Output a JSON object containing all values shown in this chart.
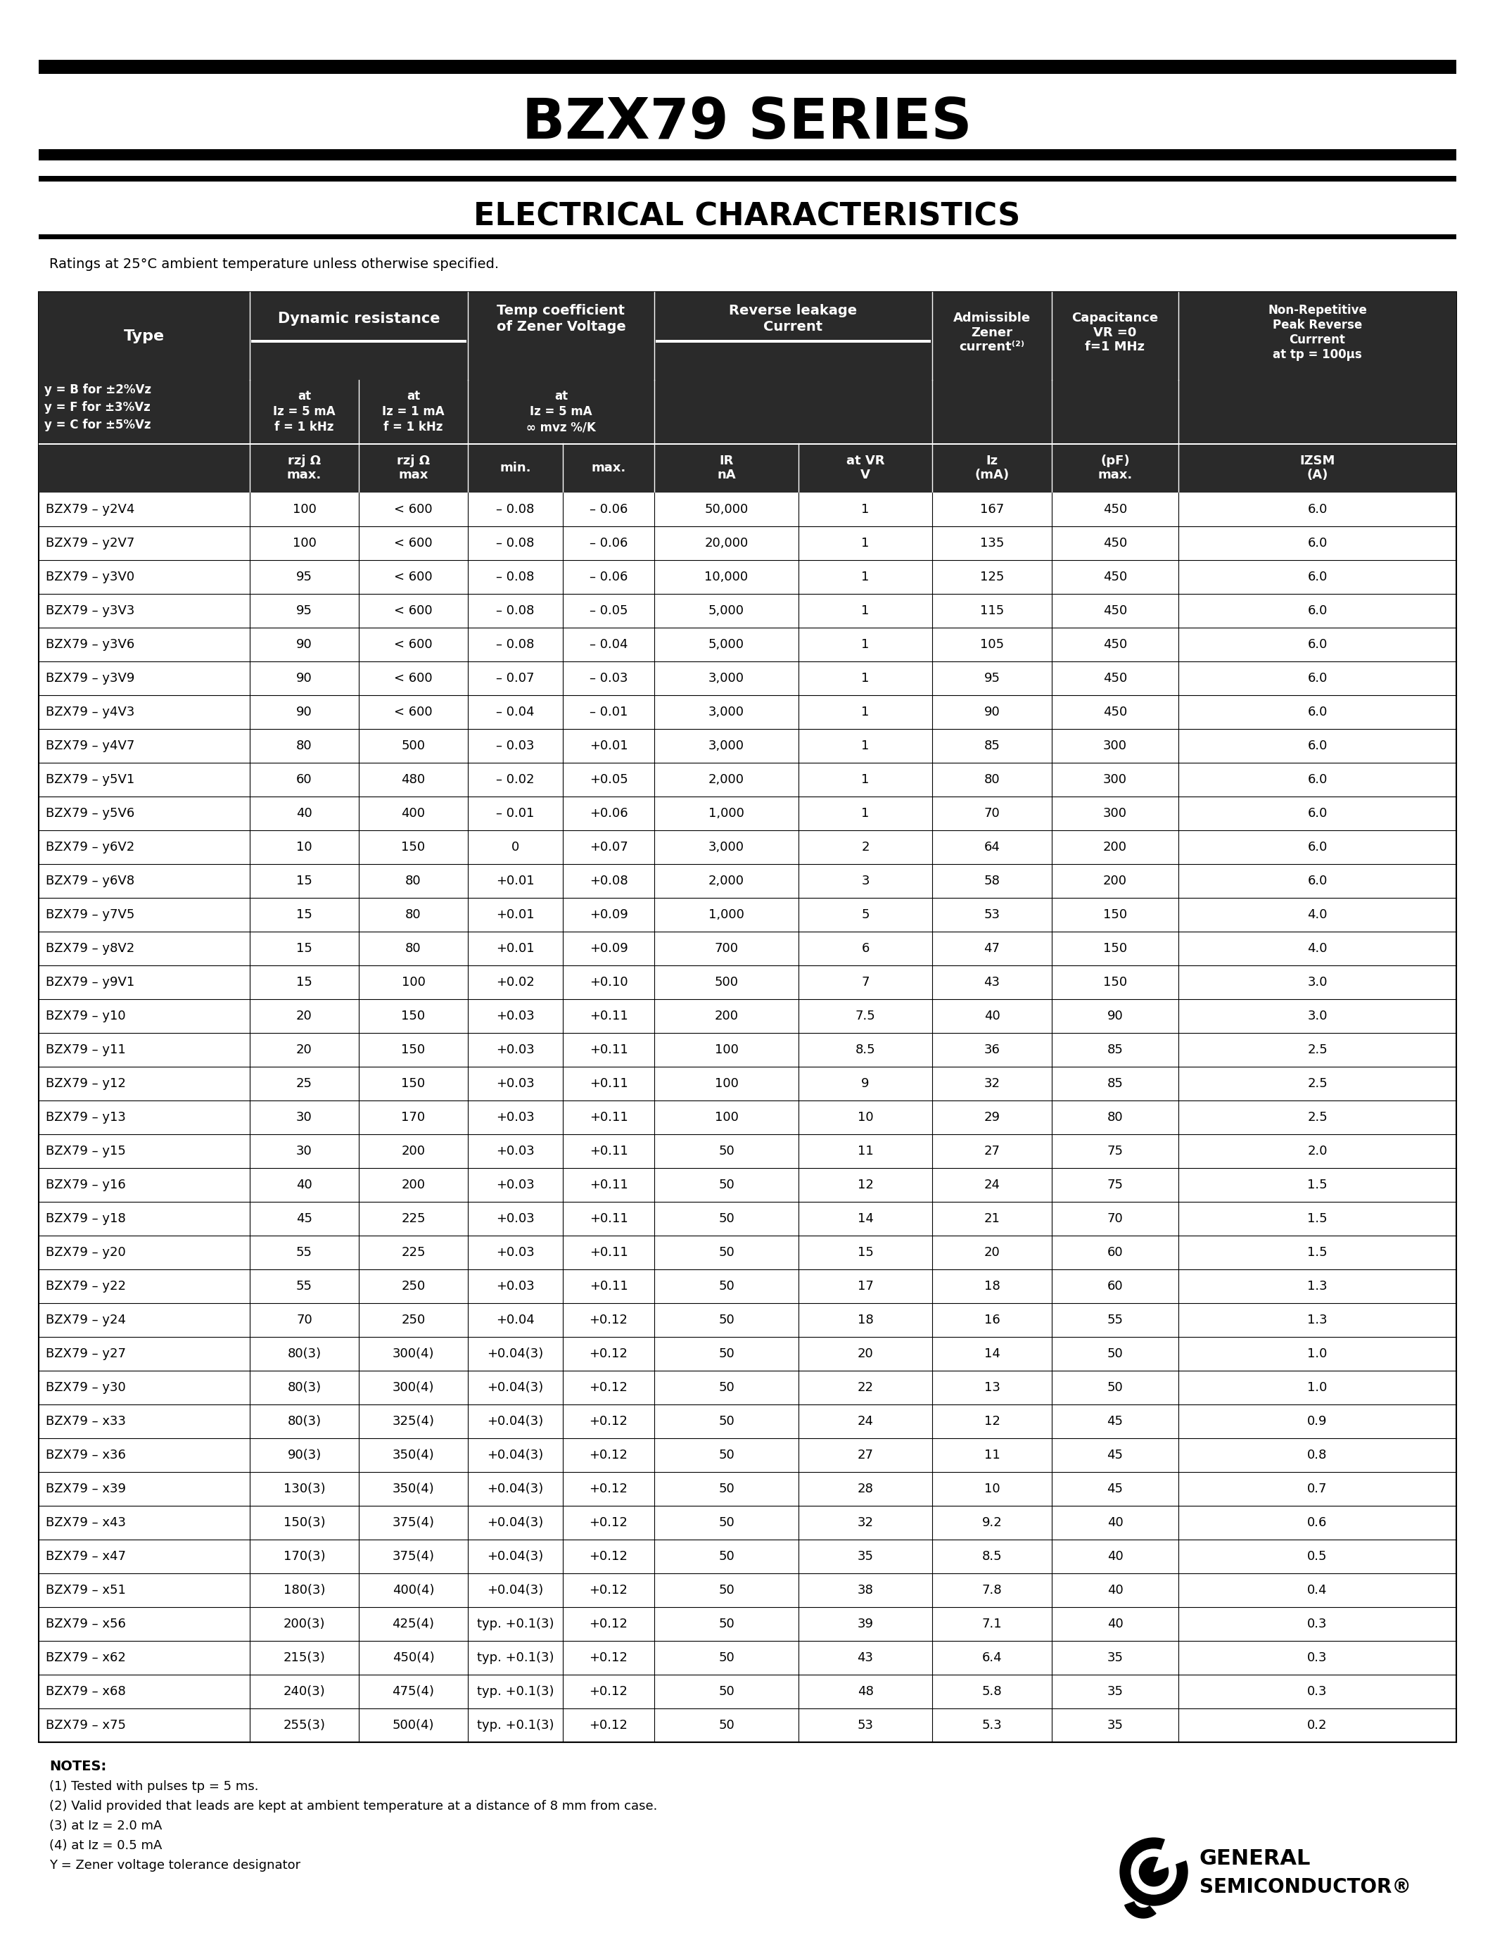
{
  "title": "BZX79 SERIES",
  "subtitle": "ELECTRICAL CHARACTERISTICS",
  "rating_note": "Ratings at 25°C ambient temperature unless otherwise specified.",
  "table_data": [
    [
      "BZX79 – y2V4",
      "100",
      "< 600",
      "– 0.08",
      "– 0.06",
      "50,000",
      "1",
      "167",
      "450",
      "6.0"
    ],
    [
      "BZX79 – y2V7",
      "100",
      "< 600",
      "– 0.08",
      "– 0.06",
      "20,000",
      "1",
      "135",
      "450",
      "6.0"
    ],
    [
      "BZX79 – y3V0",
      "95",
      "< 600",
      "– 0.08",
      "– 0.06",
      "10,000",
      "1",
      "125",
      "450",
      "6.0"
    ],
    [
      "BZX79 – y3V3",
      "95",
      "< 600",
      "– 0.08",
      "– 0.05",
      "5,000",
      "1",
      "115",
      "450",
      "6.0"
    ],
    [
      "BZX79 – y3V6",
      "90",
      "< 600",
      "– 0.08",
      "– 0.04",
      "5,000",
      "1",
      "105",
      "450",
      "6.0"
    ],
    [
      "BZX79 – y3V9",
      "90",
      "< 600",
      "– 0.07",
      "– 0.03",
      "3,000",
      "1",
      "95",
      "450",
      "6.0"
    ],
    [
      "BZX79 – y4V3",
      "90",
      "< 600",
      "– 0.04",
      "– 0.01",
      "3,000",
      "1",
      "90",
      "450",
      "6.0"
    ],
    [
      "BZX79 – y4V7",
      "80",
      "500",
      "– 0.03",
      "+0.01",
      "3,000",
      "1",
      "85",
      "300",
      "6.0"
    ],
    [
      "BZX79 – y5V1",
      "60",
      "480",
      "– 0.02",
      "+0.05",
      "2,000",
      "1",
      "80",
      "300",
      "6.0"
    ],
    [
      "BZX79 – y5V6",
      "40",
      "400",
      "– 0.01",
      "+0.06",
      "1,000",
      "1",
      "70",
      "300",
      "6.0"
    ],
    [
      "BZX79 – y6V2",
      "10",
      "150",
      "0",
      "+0.07",
      "3,000",
      "2",
      "64",
      "200",
      "6.0"
    ],
    [
      "BZX79 – y6V8",
      "15",
      "80",
      "+0.01",
      "+0.08",
      "2,000",
      "3",
      "58",
      "200",
      "6.0"
    ],
    [
      "BZX79 – y7V5",
      "15",
      "80",
      "+0.01",
      "+0.09",
      "1,000",
      "5",
      "53",
      "150",
      "4.0"
    ],
    [
      "BZX79 – y8V2",
      "15",
      "80",
      "+0.01",
      "+0.09",
      "700",
      "6",
      "47",
      "150",
      "4.0"
    ],
    [
      "BZX79 – y9V1",
      "15",
      "100",
      "+0.02",
      "+0.10",
      "500",
      "7",
      "43",
      "150",
      "3.0"
    ],
    [
      "BZX79 – y10",
      "20",
      "150",
      "+0.03",
      "+0.11",
      "200",
      "7.5",
      "40",
      "90",
      "3.0"
    ],
    [
      "BZX79 – y11",
      "20",
      "150",
      "+0.03",
      "+0.11",
      "100",
      "8.5",
      "36",
      "85",
      "2.5"
    ],
    [
      "BZX79 – y12",
      "25",
      "150",
      "+0.03",
      "+0.11",
      "100",
      "9",
      "32",
      "85",
      "2.5"
    ],
    [
      "BZX79 – y13",
      "30",
      "170",
      "+0.03",
      "+0.11",
      "100",
      "10",
      "29",
      "80",
      "2.5"
    ],
    [
      "BZX79 – y15",
      "30",
      "200",
      "+0.03",
      "+0.11",
      "50",
      "11",
      "27",
      "75",
      "2.0"
    ],
    [
      "BZX79 – y16",
      "40",
      "200",
      "+0.03",
      "+0.11",
      "50",
      "12",
      "24",
      "75",
      "1.5"
    ],
    [
      "BZX79 – y18",
      "45",
      "225",
      "+0.03",
      "+0.11",
      "50",
      "14",
      "21",
      "70",
      "1.5"
    ],
    [
      "BZX79 – y20",
      "55",
      "225",
      "+0.03",
      "+0.11",
      "50",
      "15",
      "20",
      "60",
      "1.5"
    ],
    [
      "BZX79 – y22",
      "55",
      "250",
      "+0.03",
      "+0.11",
      "50",
      "17",
      "18",
      "60",
      "1.3"
    ],
    [
      "BZX79 – y24",
      "70",
      "250",
      "+0.04",
      "+0.12",
      "50",
      "18",
      "16",
      "55",
      "1.3"
    ],
    [
      "BZX79 – y27",
      "80(3)",
      "300(4)",
      "+0.04(3)",
      "+0.12",
      "50",
      "20",
      "14",
      "50",
      "1.0"
    ],
    [
      "BZX79 – y30",
      "80(3)",
      "300(4)",
      "+0.04(3)",
      "+0.12",
      "50",
      "22",
      "13",
      "50",
      "1.0"
    ],
    [
      "BZX79 – x33",
      "80(3)",
      "325(4)",
      "+0.04(3)",
      "+0.12",
      "50",
      "24",
      "12",
      "45",
      "0.9"
    ],
    [
      "BZX79 – x36",
      "90(3)",
      "350(4)",
      "+0.04(3)",
      "+0.12",
      "50",
      "27",
      "11",
      "45",
      "0.8"
    ],
    [
      "BZX79 – x39",
      "130(3)",
      "350(4)",
      "+0.04(3)",
      "+0.12",
      "50",
      "28",
      "10",
      "45",
      "0.7"
    ],
    [
      "BZX79 – x43",
      "150(3)",
      "375(4)",
      "+0.04(3)",
      "+0.12",
      "50",
      "32",
      "9.2",
      "40",
      "0.6"
    ],
    [
      "BZX79 – x47",
      "170(3)",
      "375(4)",
      "+0.04(3)",
      "+0.12",
      "50",
      "35",
      "8.5",
      "40",
      "0.5"
    ],
    [
      "BZX79 – x51",
      "180(3)",
      "400(4)",
      "+0.04(3)",
      "+0.12",
      "50",
      "38",
      "7.8",
      "40",
      "0.4"
    ],
    [
      "BZX79 – x56",
      "200(3)",
      "425(4)",
      "typ. +0.1(3)",
      "+0.12",
      "50",
      "39",
      "7.1",
      "40",
      "0.3"
    ],
    [
      "BZX79 – x62",
      "215(3)",
      "450(4)",
      "typ. +0.1(3)",
      "+0.12",
      "50",
      "43",
      "6.4",
      "35",
      "0.3"
    ],
    [
      "BZX79 – x68",
      "240(3)",
      "475(4)",
      "typ. +0.1(3)",
      "+0.12",
      "50",
      "48",
      "5.8",
      "35",
      "0.3"
    ],
    [
      "BZX79 – x75",
      "255(3)",
      "500(4)",
      "typ. +0.1(3)",
      "+0.12",
      "50",
      "53",
      "5.3",
      "35",
      "0.2"
    ]
  ],
  "notes": [
    "NOTES:",
    "(1) Tested with pulses tp = 5 ms.",
    "(2) Valid provided that leads are kept at ambient temperature at a distance of 8 mm from case.",
    "(3) at Iz = 2.0 mA",
    "(4) at Iz = 0.5 mA",
    "Y = Zener voltage tolerance designator"
  ]
}
